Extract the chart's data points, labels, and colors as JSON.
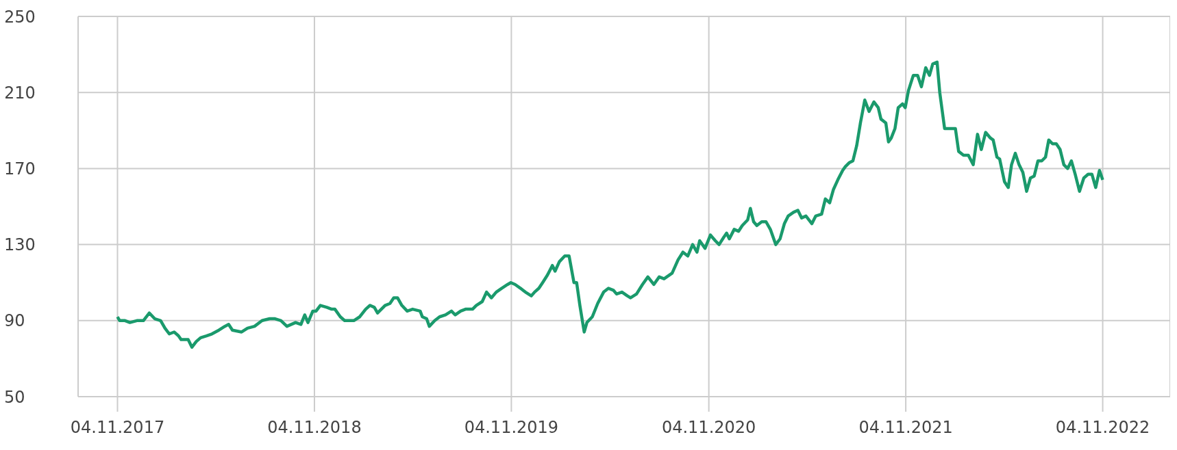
{
  "chart_data": {
    "type": "line",
    "x": [
      "2017-11-04",
      "2017-11-08",
      "2017-11-18",
      "2017-11-27",
      "2017-12-10",
      "2017-12-22",
      "2018-01-02",
      "2018-01-12",
      "2018-01-23",
      "2018-01-31",
      "2018-02-08",
      "2018-02-17",
      "2018-02-25",
      "2018-03-02",
      "2018-03-15",
      "2018-03-22",
      "2018-03-30",
      "2018-04-07",
      "2018-04-18",
      "2018-04-28",
      "2018-05-11",
      "2018-05-22",
      "2018-05-29",
      "2018-06-05",
      "2018-06-22",
      "2018-07-03",
      "2018-07-16",
      "2018-07-30",
      "2018-08-13",
      "2018-08-23",
      "2018-09-03",
      "2018-09-14",
      "2018-09-30",
      "2018-10-10",
      "2018-10-17",
      "2018-10-23",
      "2018-11-01",
      "2018-11-07",
      "2018-11-15",
      "2018-11-27",
      "2018-12-06",
      "2018-12-12",
      "2018-12-22",
      "2018-12-30",
      "2019-01-16",
      "2019-01-27",
      "2019-02-07",
      "2019-02-15",
      "2019-02-23",
      "2019-03-01",
      "2019-03-15",
      "2019-03-24",
      "2019-03-31",
      "2019-04-07",
      "2019-04-15",
      "2019-04-25",
      "2019-05-05",
      "2019-05-19",
      "2019-05-23",
      "2019-05-31",
      "2019-06-05",
      "2019-06-15",
      "2019-06-24",
      "2019-07-05",
      "2019-07-16",
      "2019-07-23",
      "2019-08-02",
      "2019-08-11",
      "2019-08-24",
      "2019-08-31",
      "2019-09-11",
      "2019-09-19",
      "2019-09-28",
      "2019-10-07",
      "2019-10-17",
      "2019-10-28",
      "2019-11-03",
      "2019-11-11",
      "2019-11-21",
      "2019-11-30",
      "2019-12-11",
      "2019-12-17",
      "2019-12-25",
      "2020-01-01",
      "2020-01-10",
      "2020-01-19",
      "2020-01-24",
      "2020-02-01",
      "2020-02-11",
      "2020-02-19",
      "2020-02-28",
      "2020-03-04",
      "2020-03-10",
      "2020-03-18",
      "2020-03-23",
      "2020-04-02",
      "2020-04-12",
      "2020-04-23",
      "2020-05-02",
      "2020-05-11",
      "2020-05-17",
      "2020-05-27",
      "2020-06-06",
      "2020-06-12",
      "2020-06-23",
      "2020-07-04",
      "2020-07-14",
      "2020-07-25",
      "2020-08-04",
      "2020-08-13",
      "2020-08-28",
      "2020-09-08",
      "2020-09-17",
      "2020-09-26",
      "2020-10-05",
      "2020-10-13",
      "2020-10-18",
      "2020-10-28",
      "2020-11-07",
      "2020-11-16",
      "2020-11-23",
      "2020-12-02",
      "2020-12-07",
      "2020-12-12",
      "2020-12-21",
      "2020-12-29",
      "2021-01-05",
      "2021-01-15",
      "2021-01-20",
      "2021-01-26",
      "2021-02-01",
      "2021-02-10",
      "2021-02-18",
      "2021-02-26",
      "2021-03-08",
      "2021-03-16",
      "2021-03-24",
      "2021-03-31",
      "2021-04-10",
      "2021-04-18",
      "2021-04-25",
      "2021-05-03",
      "2021-05-14",
      "2021-05-21",
      "2021-06-01",
      "2021-06-08",
      "2021-06-16",
      "2021-06-23",
      "2021-07-01",
      "2021-07-10",
      "2021-07-15",
      "2021-07-22",
      "2021-07-29",
      "2021-08-05",
      "2021-08-12",
      "2021-08-20",
      "2021-08-28",
      "2021-09-06",
      "2021-09-14",
      "2021-09-19",
      "2021-09-28",
      "2021-10-03",
      "2021-10-08",
      "2021-10-15",
      "2021-10-21",
      "2021-10-29",
      "2021-11-03",
      "2021-11-09",
      "2021-11-18",
      "2021-11-26",
      "2021-12-03",
      "2021-12-11",
      "2021-12-18",
      "2021-12-24",
      "2022-01-01",
      "2022-01-06",
      "2022-01-15",
      "2022-01-23",
      "2022-01-30",
      "2022-02-04",
      "2022-02-10",
      "2022-02-19",
      "2022-02-28",
      "2022-03-09",
      "2022-03-17",
      "2022-03-24",
      "2022-04-01",
      "2022-04-10",
      "2022-04-15",
      "2022-04-22",
      "2022-04-27",
      "2022-05-06",
      "2022-05-13",
      "2022-05-19",
      "2022-05-26",
      "2022-06-02",
      "2022-06-09",
      "2022-06-16",
      "2022-06-23",
      "2022-06-30",
      "2022-07-07",
      "2022-07-14",
      "2022-07-21",
      "2022-07-27",
      "2022-08-03",
      "2022-08-10",
      "2022-08-17",
      "2022-08-24",
      "2022-08-31",
      "2022-09-07",
      "2022-09-14",
      "2022-09-22",
      "2022-09-30",
      "2022-10-08",
      "2022-10-15",
      "2022-10-22",
      "2022-10-29",
      "2022-11-04"
    ],
    "series": [
      {
        "color": "#1a9a6c",
        "values": [
          92,
          90,
          90,
          89,
          90,
          90,
          94,
          91,
          90,
          86,
          83,
          84,
          82,
          80,
          80,
          76,
          79,
          81,
          82,
          83,
          85,
          87,
          88,
          85,
          84,
          86,
          87,
          90,
          91,
          91,
          90,
          87,
          89,
          88,
          93,
          89,
          95,
          95,
          98,
          97,
          96,
          96,
          92,
          90,
          90,
          92,
          96,
          98,
          97,
          94,
          98,
          99,
          102,
          102,
          98,
          95,
          96,
          95,
          92,
          91,
          87,
          90,
          92,
          93,
          95,
          93,
          95,
          96,
          96,
          98,
          100,
          105,
          102,
          105,
          107,
          109,
          110,
          109,
          107,
          105,
          103,
          105,
          107,
          110,
          114,
          119,
          116,
          121,
          124,
          124,
          110,
          110,
          98,
          84,
          89,
          92,
          99,
          105,
          107,
          106,
          104,
          105,
          103,
          102,
          104,
          109,
          113,
          109,
          113,
          112,
          115,
          122,
          126,
          124,
          130,
          126,
          132,
          128,
          135,
          132,
          130,
          134,
          136,
          133,
          138,
          137,
          140,
          143,
          149,
          142,
          140,
          142,
          142,
          138,
          130,
          133,
          141,
          145,
          147,
          148,
          144,
          145,
          141,
          145,
          146,
          154,
          152,
          159,
          164,
          169,
          171,
          173,
          174,
          182,
          194,
          206,
          200,
          205,
          202,
          196,
          194,
          184,
          186,
          191,
          202,
          204,
          202,
          211,
          219,
          219,
          213,
          223,
          219,
          225,
          226,
          210,
          191,
          191,
          191,
          191,
          179,
          177,
          177,
          172,
          188,
          180,
          189,
          186,
          185,
          176,
          175,
          163,
          160,
          172,
          178,
          172,
          168,
          158,
          165,
          166,
          174,
          174,
          176,
          185,
          183,
          183,
          180,
          172,
          170,
          174,
          167,
          158,
          165,
          167,
          167,
          160,
          169,
          164
        ]
      }
    ],
    "xlim": [
      "2017-08-23",
      "2023-03-09"
    ],
    "xticks": [
      {
        "value": "2017-11-04",
        "label": "04.11.2017"
      },
      {
        "value": "2018-11-04",
        "label": "04.11.2018"
      },
      {
        "value": "2019-11-04",
        "label": "04.11.2019"
      },
      {
        "value": "2020-11-04",
        "label": "04.11.2020"
      },
      {
        "value": "2021-11-04",
        "label": "04.11.2021"
      },
      {
        "value": "2022-11-04",
        "label": "04.11.2022"
      }
    ],
    "ylim": [
      50,
      250
    ],
    "yticks": [
      50,
      90,
      130,
      170,
      210,
      250
    ],
    "grid": true,
    "marker": "none",
    "line_style": "solid",
    "legend": false
  }
}
